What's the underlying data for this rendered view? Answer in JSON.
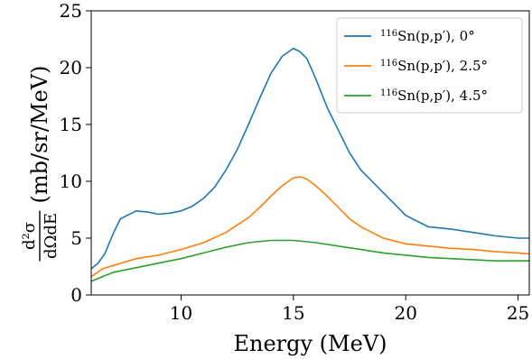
{
  "chart_data": {
    "type": "line",
    "xlabel": "Energy (MeV)",
    "ylabel_lead": "(mb/sr/MeV)",
    "ylabel_fraction": {
      "numerator": "d²σ",
      "denominator": "dΩdE"
    },
    "xlim": [
      6.0,
      25.5
    ],
    "ylim": [
      0,
      25
    ],
    "x_ticks": [
      10,
      15,
      20,
      25
    ],
    "y_ticks": [
      0,
      5,
      10,
      15,
      20,
      25
    ],
    "grid": false,
    "legend_position": "top-right",
    "series": [
      {
        "name": "116Sn(p,p′), 0°",
        "label_sup": "116",
        "label_rest": "Sn(p,p′), 0°",
        "color": "#1f77b4",
        "x": [
          6.0,
          6.3,
          6.6,
          7.0,
          7.3,
          7.6,
          8.0,
          8.5,
          9.0,
          9.5,
          10.0,
          10.5,
          11.0,
          11.5,
          12.0,
          12.5,
          13.0,
          13.5,
          14.0,
          14.5,
          15.0,
          15.3,
          15.6,
          16.0,
          16.5,
          17.0,
          17.5,
          18.0,
          18.5,
          19.0,
          19.5,
          20.0,
          21.0,
          22.0,
          23.0,
          24.0,
          25.0,
          25.5
        ],
        "y": [
          2.3,
          2.8,
          3.6,
          5.5,
          6.7,
          7.0,
          7.4,
          7.3,
          7.1,
          7.2,
          7.4,
          7.8,
          8.5,
          9.5,
          11.0,
          12.8,
          15.0,
          17.3,
          19.5,
          21.0,
          21.7,
          21.4,
          20.8,
          19.0,
          16.5,
          14.5,
          12.5,
          11.0,
          10.0,
          9.0,
          8.0,
          7.0,
          6.0,
          5.8,
          5.5,
          5.2,
          5.0,
          5.0
        ]
      },
      {
        "name": "116Sn(p,p′), 2.5°",
        "label_sup": "116",
        "label_rest": "Sn(p,p′), 2.5°",
        "color": "#ff7f0e",
        "x": [
          6.0,
          6.5,
          7.0,
          7.5,
          8.0,
          9.0,
          10.0,
          11.0,
          12.0,
          13.0,
          13.5,
          14.0,
          14.5,
          15.0,
          15.3,
          15.6,
          16.0,
          16.5,
          17.0,
          17.5,
          18.0,
          19.0,
          20.0,
          21.0,
          22.0,
          23.0,
          24.0,
          25.0,
          25.5
        ],
        "y": [
          1.6,
          2.3,
          2.6,
          2.9,
          3.2,
          3.5,
          4.0,
          4.6,
          5.5,
          6.8,
          7.7,
          8.7,
          9.6,
          10.3,
          10.4,
          10.2,
          9.6,
          8.7,
          7.7,
          6.7,
          6.0,
          5.0,
          4.5,
          4.3,
          4.1,
          4.0,
          3.8,
          3.7,
          3.6
        ]
      },
      {
        "name": "116Sn(p,p′), 4.5°",
        "label_sup": "116",
        "label_rest": "Sn(p,p′), 4.5°",
        "color": "#2ca02c",
        "x": [
          6.0,
          6.5,
          7.0,
          8.0,
          9.0,
          10.0,
          11.0,
          12.0,
          13.0,
          14.0,
          15.0,
          16.0,
          17.0,
          18.0,
          19.0,
          20.0,
          21.0,
          22.0,
          23.0,
          24.0,
          25.0,
          25.5
        ],
        "y": [
          1.2,
          1.6,
          2.0,
          2.4,
          2.8,
          3.2,
          3.7,
          4.2,
          4.6,
          4.8,
          4.8,
          4.6,
          4.3,
          4.0,
          3.7,
          3.5,
          3.3,
          3.2,
          3.1,
          3.0,
          3.0,
          3.0
        ]
      }
    ]
  }
}
